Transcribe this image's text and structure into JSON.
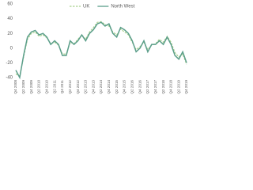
{
  "chart_data": {
    "type": "line",
    "categories": [
      "Q4 2008",
      null,
      "Q2 2009",
      null,
      "Q4 2009",
      null,
      "Q2 2010",
      null,
      "Q4 2010",
      null,
      "Q2 2011",
      null,
      "Q4 2011",
      null,
      "Q2 2012",
      null,
      "Q4 2012",
      null,
      "Q2 2013",
      null,
      "Q4 2013",
      null,
      "Q2 2014",
      null,
      "Q4 2014",
      null,
      "Q2 2015",
      null,
      "Q4 2015",
      null,
      "Q2 2016",
      null,
      "Q4 2016",
      null,
      "Q2 2017",
      null,
      "Q4 2017",
      null,
      "Q2 2018",
      null,
      "Q4 2018",
      null,
      "Q2 2019",
      null,
      "Q4 2019"
    ],
    "series": [
      {
        "name": "UK",
        "color": "#a9d18e",
        "dashed": true,
        "values": [
          -35,
          -38,
          -12,
          12,
          20,
          22,
          16,
          18,
          14,
          6,
          8,
          4,
          -8,
          -8,
          8,
          6,
          12,
          18,
          12,
          22,
          28,
          35,
          36,
          32,
          30,
          22,
          18,
          26,
          22,
          18,
          8,
          -2,
          2,
          8,
          -2,
          4,
          6,
          12,
          8,
          16,
          8,
          -6,
          -12,
          -8,
          -22
        ]
      },
      {
        "name": "North West",
        "color": "#5b9e8a",
        "dashed": false,
        "values": [
          -30,
          -40,
          -10,
          15,
          22,
          24,
          18,
          20,
          15,
          5,
          10,
          5,
          -10,
          -10,
          10,
          5,
          10,
          18,
          10,
          20,
          25,
          33,
          35,
          30,
          33,
          20,
          15,
          28,
          25,
          20,
          10,
          -5,
          0,
          10,
          -5,
          5,
          5,
          10,
          5,
          15,
          5,
          -10,
          -15,
          -5,
          -20
        ]
      }
    ],
    "ylim": [
      -40,
      60
    ],
    "yticks": [
      -40,
      -20,
      0,
      20,
      40,
      60
    ],
    "grid": false,
    "legend": "top"
  }
}
